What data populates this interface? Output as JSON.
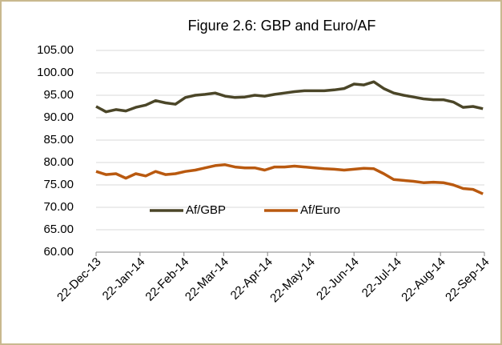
{
  "chart_data": {
    "type": "line",
    "title": "Figure 2.6: GBP and Euro/AF",
    "x": [
      "2013-12-22",
      "2013-12-29",
      "2014-01-05",
      "2014-01-12",
      "2014-01-19",
      "2014-01-26",
      "2014-02-02",
      "2014-02-09",
      "2014-02-16",
      "2014-02-23",
      "2014-03-02",
      "2014-03-09",
      "2014-03-16",
      "2014-03-23",
      "2014-03-30",
      "2014-04-06",
      "2014-04-13",
      "2014-04-20",
      "2014-04-27",
      "2014-05-04",
      "2014-05-11",
      "2014-05-18",
      "2014-05-25",
      "2014-06-01",
      "2014-06-08",
      "2014-06-15",
      "2014-06-22",
      "2014-06-29",
      "2014-07-06",
      "2014-07-13",
      "2014-07-20",
      "2014-07-27",
      "2014-08-03",
      "2014-08-10",
      "2014-08-17",
      "2014-08-24",
      "2014-08-31",
      "2014-09-07",
      "2014-09-14",
      "2014-09-21"
    ],
    "series": [
      {
        "name": "Af/GBP",
        "color": "#4b4628",
        "values": [
          92.5,
          91.3,
          91.8,
          91.5,
          92.3,
          92.8,
          93.8,
          93.3,
          93.0,
          94.5,
          95.0,
          95.2,
          95.5,
          94.8,
          94.5,
          94.6,
          95.0,
          94.8,
          95.2,
          95.5,
          95.8,
          96.0,
          96.0,
          96.0,
          96.2,
          96.5,
          97.5,
          97.3,
          98.0,
          96.5,
          95.5,
          95.0,
          94.6,
          94.2,
          94.0,
          94.0,
          93.5,
          92.3,
          92.5,
          92.0
        ]
      },
      {
        "name": "Af/Euro",
        "color": "#b9590f",
        "values": [
          78.0,
          77.3,
          77.5,
          76.5,
          77.5,
          77.0,
          78.0,
          77.3,
          77.5,
          78.0,
          78.3,
          78.8,
          79.3,
          79.5,
          79.0,
          78.8,
          78.8,
          78.3,
          79.0,
          79.0,
          79.2,
          79.0,
          78.8,
          78.6,
          78.5,
          78.3,
          78.5,
          78.7,
          78.6,
          77.5,
          76.2,
          76.0,
          75.8,
          75.5,
          75.6,
          75.5,
          75.0,
          74.2,
          74.0,
          73.0
        ]
      }
    ],
    "xlim": [
      "2013-12-22",
      "2014-09-22"
    ],
    "xticks": [
      {
        "value": "2013-12-22",
        "label": "22-Dec-13"
      },
      {
        "value": "2014-01-22",
        "label": "22-Jan-14"
      },
      {
        "value": "2014-02-22",
        "label": "22-Feb-14"
      },
      {
        "value": "2014-03-22",
        "label": "22-Mar-14"
      },
      {
        "value": "2014-04-22",
        "label": "22-Apr-14"
      },
      {
        "value": "2014-05-22",
        "label": "22-May-14"
      },
      {
        "value": "2014-06-22",
        "label": "22-Jun-14"
      },
      {
        "value": "2014-07-22",
        "label": "22-Jul-14"
      },
      {
        "value": "2014-08-22",
        "label": "22-Aug-14"
      },
      {
        "value": "2014-09-22",
        "label": "22-Sep-14"
      }
    ],
    "ylim": [
      60,
      105
    ],
    "yticks": [
      {
        "value": 60,
        "label": "60.00"
      },
      {
        "value": 65,
        "label": "65.00"
      },
      {
        "value": 70,
        "label": "70.00"
      },
      {
        "value": 75,
        "label": "75.00"
      },
      {
        "value": 80,
        "label": "80.00"
      },
      {
        "value": 85,
        "label": "85.00"
      },
      {
        "value": 90,
        "label": "90.00"
      },
      {
        "value": 95,
        "label": "95.00"
      },
      {
        "value": 100,
        "label": "100.00"
      },
      {
        "value": 105,
        "label": "105.00"
      }
    ],
    "grid": true,
    "legend": "lower center"
  }
}
